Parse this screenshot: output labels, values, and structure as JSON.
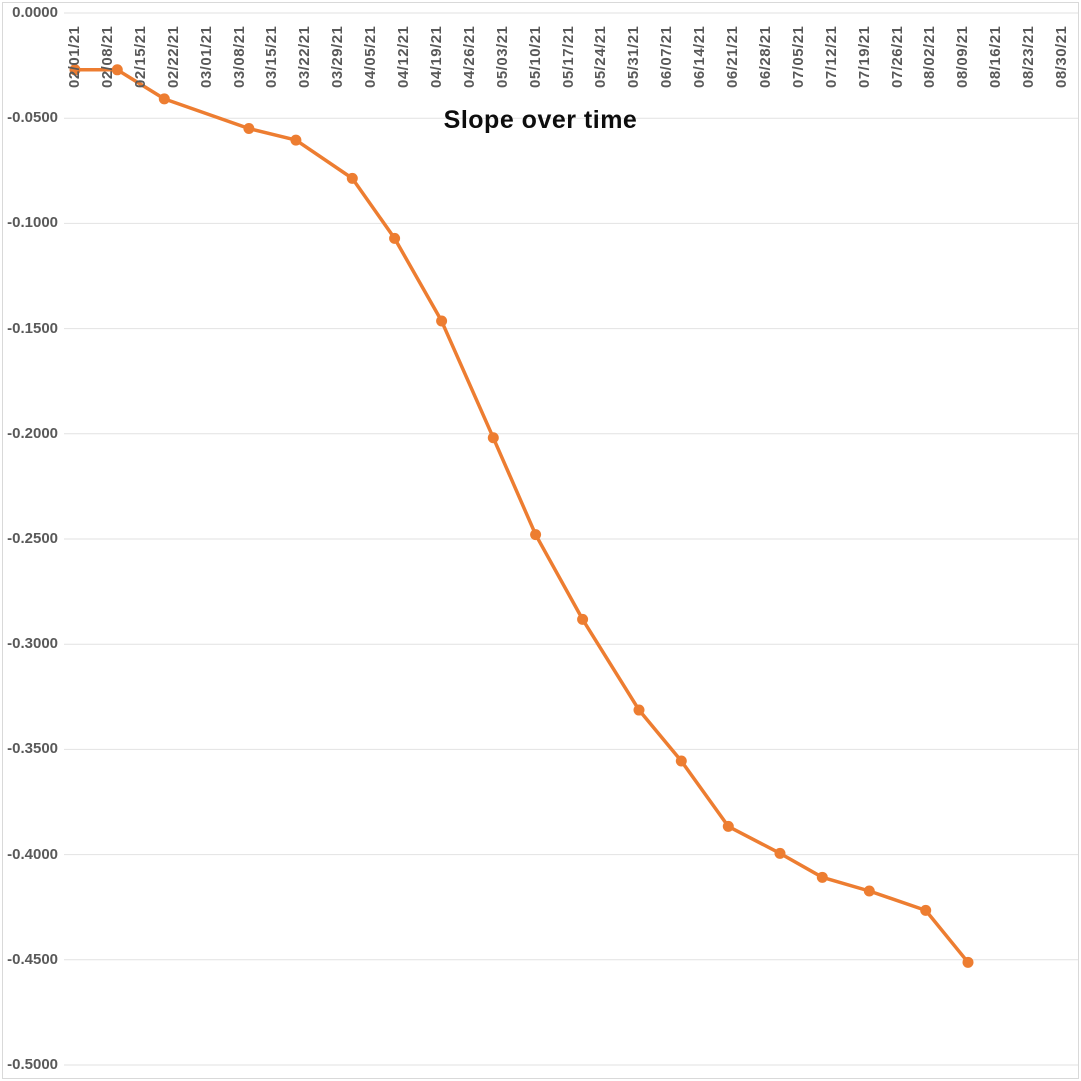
{
  "chart_data": {
    "type": "line",
    "title": "Slope over time",
    "xlabel": "",
    "ylabel": "",
    "grid": "horizontal",
    "legend": "none",
    "marker": "circle",
    "series": [
      {
        "name": "Slope",
        "color": "#ED7D31",
        "x": [
          "02/01/21",
          "02/10/21",
          "02/20/21",
          "03/10/21",
          "03/20/21",
          "04/01/21",
          "04/10/21",
          "04/20/21",
          "05/01/21",
          "05/10/21",
          "05/20/21",
          "06/01/21",
          "06/10/21",
          "06/20/21",
          "07/01/21",
          "07/10/21",
          "07/20/21",
          "08/01/21",
          "08/10/21"
        ],
        "values": [
          -0.027,
          -0.027,
          -0.0408,
          -0.0549,
          -0.0604,
          -0.0786,
          -0.1071,
          -0.1464,
          -0.2019,
          -0.2479,
          -0.2882,
          -0.3313,
          -0.3555,
          -0.3866,
          -0.3994,
          -0.4108,
          -0.4173,
          -0.4265,
          -0.4512
        ]
      }
    ],
    "x_axis": {
      "tick_labels": [
        "02/01/21",
        "02/08/21",
        "02/15/21",
        "02/22/21",
        "03/01/21",
        "03/08/21",
        "03/15/21",
        "03/22/21",
        "03/29/21",
        "04/05/21",
        "04/12/21",
        "04/19/21",
        "04/26/21",
        "05/03/21",
        "05/10/21",
        "05/17/21",
        "05/24/21",
        "05/31/21",
        "06/07/21",
        "06/14/21",
        "06/21/21",
        "06/28/21",
        "07/05/21",
        "07/12/21",
        "07/19/21",
        "07/26/21",
        "08/02/21",
        "08/09/21",
        "08/16/21",
        "08/23/21",
        "08/30/21"
      ],
      "label_rotation_degrees": 90
    },
    "y_axis": {
      "tick_labels": [
        "0.0000",
        "-0.0500",
        "-0.1000",
        "-0.1500",
        "-0.2000",
        "-0.2500",
        "-0.3000",
        "-0.3500",
        "-0.4000",
        "-0.4500",
        "-0.5000"
      ],
      "min": -0.5,
      "max": 0,
      "step": 0.05
    },
    "colors": {
      "line": "#ED7D31",
      "marker": "#ED7D31",
      "gridline": "#E2E2E2",
      "tick_text": "#595959",
      "title_text": "#0d0d0d",
      "chart_border": "#D9D9D9",
      "background": "#FFFFFF"
    }
  }
}
